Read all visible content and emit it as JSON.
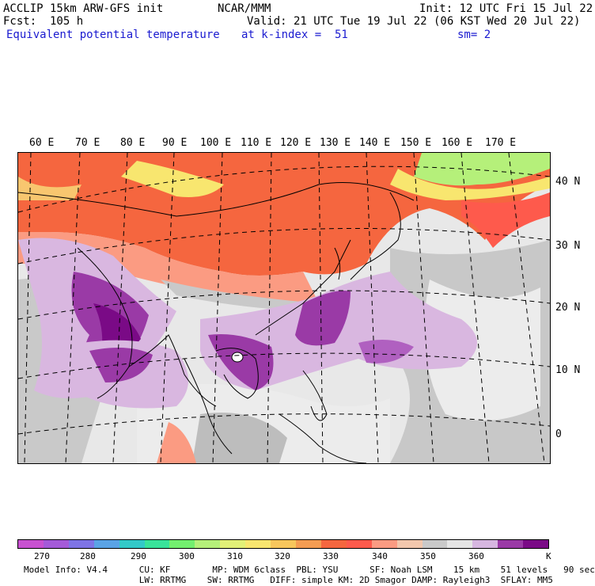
{
  "header": {
    "model": "ACCLIP 15km ARW-GFS init",
    "org": "NCAR/MMM",
    "init": "Init: 12 UTC Fri 15 Jul 22",
    "fcst": "Fcst:  105 h",
    "valid": "Valid: 21 UTC Tue 19 Jul 22 (06 KST Wed 20 Jul 22)",
    "field": "Equivalent potential temperature",
    "level": "at k-index =  51",
    "smooth": "sm= 2"
  },
  "map": {
    "lon_labels": [
      "60 E",
      "70 E",
      "80 E",
      "90 E",
      "100 E",
      "110 E",
      "120 E",
      "130 E",
      "140 E",
      "150 E",
      "160 E",
      "170 E"
    ],
    "lat_labels": [
      "40 N",
      "30 N",
      "20 N",
      "10 N",
      "0"
    ],
    "colors": {
      "lowest": "#7a0a86",
      "purple": "#9a3aa6",
      "lavender": "#d9b7e0",
      "lightgray": "#ececec",
      "gray": "#c8c8c8",
      "darkgray": "#b7b7b7",
      "salmon": "#fb9b82",
      "orange": "#f5663f",
      "red": "#fe5a4c",
      "yellow": "#f8e66f",
      "green": "#b5f07a",
      "land_line": "#000000"
    }
  },
  "colorbar": {
    "unit": "K",
    "ticks": [
      "270",
      "280",
      "290",
      "300",
      "310",
      "320",
      "330",
      "340",
      "350",
      "360"
    ],
    "colors": [
      "#c851d0",
      "#a45ad8",
      "#7e74e6",
      "#5aa3e6",
      "#33c9c8",
      "#39e39a",
      "#73ef6f",
      "#b5f07a",
      "#e2f077",
      "#f8e66f",
      "#f7c65c",
      "#f49c52",
      "#f5663f",
      "#fe5a4c",
      "#fb9b82",
      "#f2c7ad",
      "#c9c9c9",
      "#e5e5e5",
      "#d6b6e0",
      "#9a3aa6",
      "#7a0a86"
    ]
  },
  "footer": {
    "line1": "Model Info: V4.4      CU: KF        MP: WDM 6class  PBL: YSU      SF: Noah LSM    15 km    51 levels   90 sec",
    "line2": "                      LW: RRTMG    SW: RRTMG   DIFF: simple KM: 2D Smagor DAMP: Rayleigh3  SFLAY: MM5"
  }
}
